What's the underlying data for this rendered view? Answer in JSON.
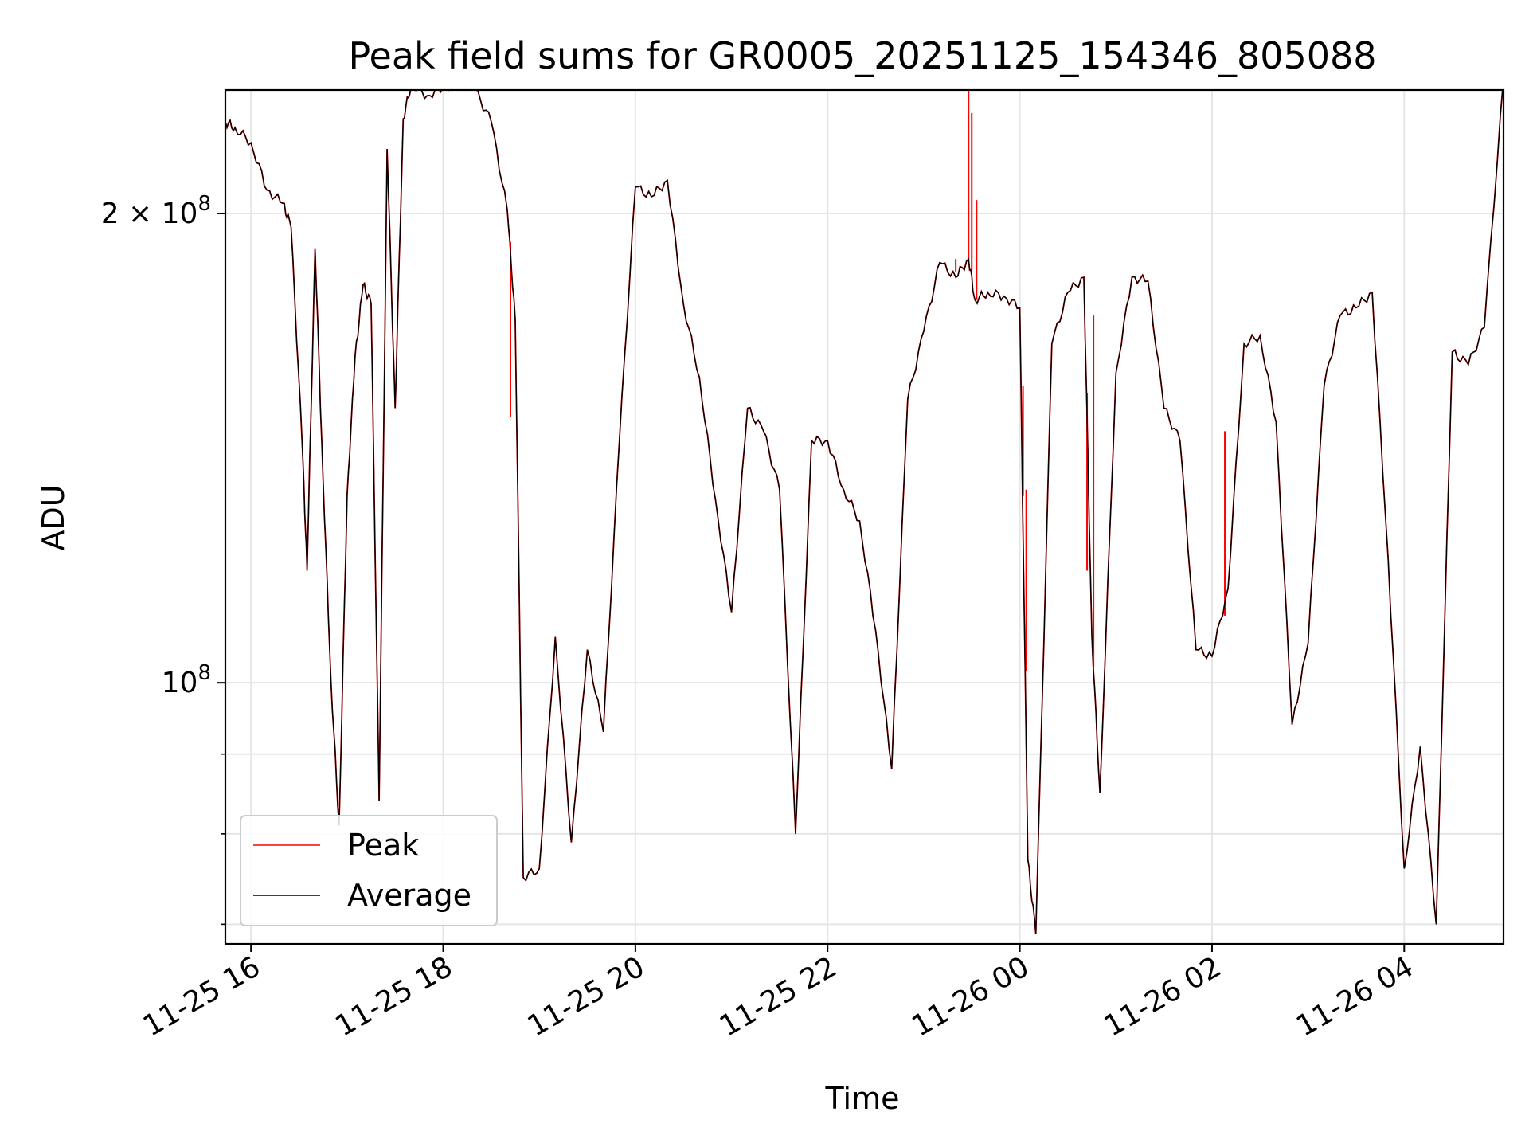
{
  "chart_data": {
    "type": "line",
    "title": "Peak field sums for GR0005_20251125_154346_805088",
    "xlabel": "Time",
    "ylabel": "ADU",
    "yscale": "log",
    "grid": true,
    "legend_position": "lower-left",
    "xlim": [
      "2025-11-25 15:44",
      "2025-11-26 05:02"
    ],
    "ylim": [
      68000000,
      240000000
    ],
    "x_ticks": [
      {
        "value": "2025-11-25 16:00",
        "label": "11-25 16"
      },
      {
        "value": "2025-11-25 18:00",
        "label": "11-25 18"
      },
      {
        "value": "2025-11-25 20:00",
        "label": "11-25 20"
      },
      {
        "value": "2025-11-25 22:00",
        "label": "11-25 22"
      },
      {
        "value": "2025-11-26 00:00",
        "label": "11-26 00"
      },
      {
        "value": "2025-11-26 02:00",
        "label": "11-26 02"
      },
      {
        "value": "2025-11-26 04:00",
        "label": "11-26 04"
      }
    ],
    "y_ticks": [
      {
        "value": 100000000,
        "base": "10",
        "exp": "8",
        "prefix": ""
      },
      {
        "value": 200000000,
        "base": "10",
        "exp": "8",
        "prefix": "2 × "
      }
    ],
    "y_minor_ticks": [
      70000000,
      80000000,
      90000000
    ],
    "series": [
      {
        "name": "Peak",
        "color": "#ff0000"
      },
      {
        "name": "Average",
        "color": "#000000"
      }
    ],
    "x": [
      "2025-11-25 15:44",
      "2025-11-25 15:50",
      "2025-11-25 16:00",
      "2025-11-25 16:10",
      "2025-11-25 16:20",
      "2025-11-25 16:25",
      "2025-11-25 16:32",
      "2025-11-25 16:35",
      "2025-11-25 16:40",
      "2025-11-25 16:45",
      "2025-11-25 16:50",
      "2025-11-25 16:55",
      "2025-11-25 17:00",
      "2025-11-25 17:05",
      "2025-11-25 17:10",
      "2025-11-25 17:15",
      "2025-11-25 17:20",
      "2025-11-25 17:25",
      "2025-11-25 17:30",
      "2025-11-25 17:35",
      "2025-11-25 17:40",
      "2025-11-25 17:50",
      "2025-11-25 18:00",
      "2025-11-25 18:10",
      "2025-11-25 18:20",
      "2025-11-25 18:30",
      "2025-11-25 18:40",
      "2025-11-25 18:45",
      "2025-11-25 18:50",
      "2025-11-25 19:00",
      "2025-11-25 19:10",
      "2025-11-25 19:20",
      "2025-11-25 19:30",
      "2025-11-25 19:40",
      "2025-11-25 19:50",
      "2025-11-25 20:00",
      "2025-11-25 20:10",
      "2025-11-25 20:20",
      "2025-11-25 20:30",
      "2025-11-25 20:40",
      "2025-11-25 20:50",
      "2025-11-25 21:00",
      "2025-11-25 21:10",
      "2025-11-25 21:20",
      "2025-11-25 21:30",
      "2025-11-25 21:40",
      "2025-11-25 21:50",
      "2025-11-25 22:00",
      "2025-11-25 22:10",
      "2025-11-25 22:20",
      "2025-11-25 22:30",
      "2025-11-25 22:40",
      "2025-11-25 22:50",
      "2025-11-25 23:00",
      "2025-11-25 23:10",
      "2025-11-25 23:20",
      "2025-11-25 23:28",
      "2025-11-25 23:32",
      "2025-11-25 23:40",
      "2025-11-25 23:50",
      "2025-11-26 00:00",
      "2025-11-26 00:05",
      "2025-11-26 00:10",
      "2025-11-26 00:20",
      "2025-11-26 00:30",
      "2025-11-26 00:40",
      "2025-11-26 00:45",
      "2025-11-26 00:50",
      "2025-11-26 01:00",
      "2025-11-26 01:10",
      "2025-11-26 01:20",
      "2025-11-26 01:30",
      "2025-11-26 01:40",
      "2025-11-26 01:50",
      "2025-11-26 02:00",
      "2025-11-26 02:10",
      "2025-11-26 02:20",
      "2025-11-26 02:30",
      "2025-11-26 02:40",
      "2025-11-26 02:50",
      "2025-11-26 03:00",
      "2025-11-26 03:10",
      "2025-11-26 03:20",
      "2025-11-26 03:30",
      "2025-11-26 03:40",
      "2025-11-26 03:50",
      "2025-11-26 04:00",
      "2025-11-26 04:10",
      "2025-11-26 04:20",
      "2025-11-26 04:30",
      "2025-11-26 04:40",
      "2025-11-26 04:50",
      "2025-11-26 05:02"
    ],
    "average": [
      229000000,
      227000000,
      222000000,
      207000000,
      203000000,
      196000000,
      142000000,
      118000000,
      190000000,
      135000000,
      100000000,
      81000000,
      132000000,
      162000000,
      180000000,
      175000000,
      84000000,
      220000000,
      150000000,
      230000000,
      242000000,
      238000000,
      241000000,
      243000000,
      240000000,
      229000000,
      201000000,
      171000000,
      75000000,
      76000000,
      107000000,
      79000000,
      105000000,
      93000000,
      143000000,
      208000000,
      205000000,
      210000000,
      175000000,
      157000000,
      131000000,
      111000000,
      150000000,
      145000000,
      133000000,
      80000000,
      143000000,
      143000000,
      133000000,
      127000000,
      108000000,
      88000000,
      152000000,
      168000000,
      186000000,
      182000000,
      187000000,
      176000000,
      178000000,
      177000000,
      174000000,
      77000000,
      69000000,
      165000000,
      178000000,
      182000000,
      107000000,
      85000000,
      158000000,
      182000000,
      181000000,
      150000000,
      143000000,
      105000000,
      104000000,
      115000000,
      165000000,
      167000000,
      147000000,
      94000000,
      106000000,
      155000000,
      172000000,
      174000000,
      178000000,
      120000000,
      76000000,
      91000000,
      70000000,
      163000000,
      160000000,
      169000000,
      244000000
    ],
    "peak_spikes": [
      {
        "x": "2025-11-25 18:42",
        "value": 148000000
      },
      {
        "x": "2025-11-25 23:20",
        "value": 187000000
      },
      {
        "x": "2025-11-25 23:28",
        "value": 242000000
      },
      {
        "x": "2025-11-25 23:30",
        "value": 232000000
      },
      {
        "x": "2025-11-25 23:33",
        "value": 204000000
      },
      {
        "x": "2025-11-26 00:02",
        "value": 155000000
      },
      {
        "x": "2025-11-26 00:04",
        "value": 133000000
      },
      {
        "x": "2025-11-26 00:42",
        "value": 118000000
      },
      {
        "x": "2025-11-26 00:46",
        "value": 172000000
      },
      {
        "x": "2025-11-26 02:08",
        "value": 145000000
      }
    ]
  }
}
